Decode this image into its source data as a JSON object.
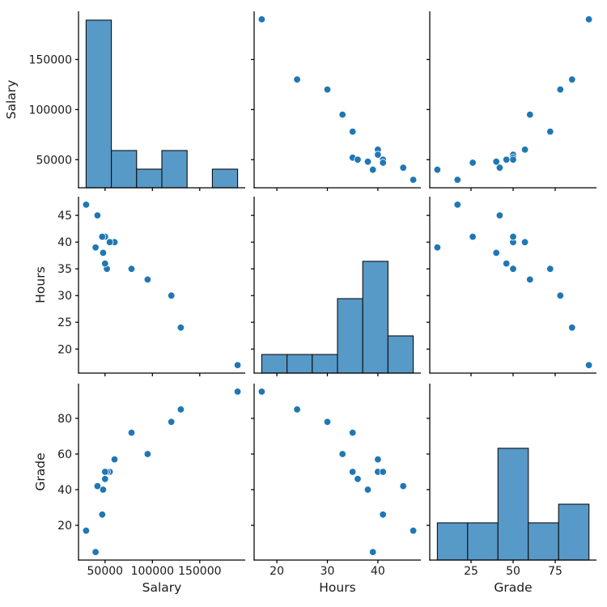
{
  "figure": {
    "background": "#ffffff"
  },
  "style": {
    "point_color": "#1f77b4",
    "point_edge_color": "#ffffff",
    "bar_fill_color": "#5799c7",
    "bar_edge_color": "#0f0f0f",
    "spine_color": "#000000",
    "text_color": "#1a1a1a"
  },
  "chart_data": {
    "type": "scatter",
    "subtype": "pairplot-scatter-matrix",
    "title": "",
    "variables": [
      "Salary",
      "Hours",
      "Grade"
    ],
    "diagonal": "histogram",
    "grid": false,
    "legend_position": "none",
    "records": [
      {
        "Salary": 190000,
        "Hours": 17,
        "Grade": 95
      },
      {
        "Salary": 130000,
        "Hours": 24,
        "Grade": 85
      },
      {
        "Salary": 120000,
        "Hours": 30,
        "Grade": 78
      },
      {
        "Salary": 95000,
        "Hours": 33,
        "Grade": 60
      },
      {
        "Salary": 78000,
        "Hours": 35,
        "Grade": 72
      },
      {
        "Salary": 60000,
        "Hours": 40,
        "Grade": 57
      },
      {
        "Salary": 55000,
        "Hours": 40,
        "Grade": 50
      },
      {
        "Salary": 52000,
        "Hours": 35,
        "Grade": 50
      },
      {
        "Salary": 50000,
        "Hours": 41,
        "Grade": 50
      },
      {
        "Salary": 47000,
        "Hours": 41,
        "Grade": 26
      },
      {
        "Salary": 50000,
        "Hours": 36,
        "Grade": 46
      },
      {
        "Salary": 48000,
        "Hours": 38,
        "Grade": 40
      },
      {
        "Salary": 42000,
        "Hours": 45,
        "Grade": 42
      },
      {
        "Salary": 40000,
        "Hours": 39,
        "Grade": 5
      },
      {
        "Salary": 30000,
        "Hours": 47,
        "Grade": 17
      }
    ],
    "axes": {
      "Salary": {
        "range": [
          22000,
          198000
        ],
        "xticks": [
          50000,
          100000,
          150000
        ],
        "xtick_labels": [
          "50000",
          "100000",
          "150000"
        ],
        "yticks": [
          50000,
          100000,
          150000
        ],
        "ytick_labels": [
          "50000",
          "100000",
          "150000"
        ]
      },
      "Hours": {
        "range": [
          15.5,
          48.5
        ],
        "xticks": [
          20,
          30,
          40
        ],
        "xtick_labels": [
          "20",
          "30",
          "40"
        ],
        "yticks": [
          20,
          25,
          30,
          35,
          40,
          45
        ],
        "ytick_labels": [
          "20",
          "25",
          "30",
          "35",
          "40",
          "45"
        ]
      },
      "Grade": {
        "range": [
          0.5,
          99.5
        ],
        "xticks": [
          25,
          50,
          75
        ],
        "xtick_labels": [
          "25",
          "50",
          "75"
        ],
        "yticks": [
          20,
          40,
          60,
          80
        ],
        "ytick_labels": [
          "20",
          "40",
          "60",
          "80"
        ]
      }
    },
    "histograms": {
      "Salary": {
        "bin_edges": [
          30000,
          56666.7,
          83333.3,
          110000,
          136666.7,
          163333.3,
          190000
        ],
        "counts": [
          9,
          2,
          1,
          2,
          0,
          1
        ]
      },
      "Hours": {
        "bin_edges": [
          17,
          22,
          27,
          32,
          37,
          42,
          47
        ],
        "counts": [
          1,
          1,
          1,
          4,
          6,
          2
        ]
      },
      "Grade": {
        "bin_edges": [
          5,
          23,
          41,
          59,
          77,
          95
        ],
        "counts": [
          2,
          2,
          6,
          2,
          3
        ]
      }
    },
    "count_axis_shared_max": 9
  }
}
